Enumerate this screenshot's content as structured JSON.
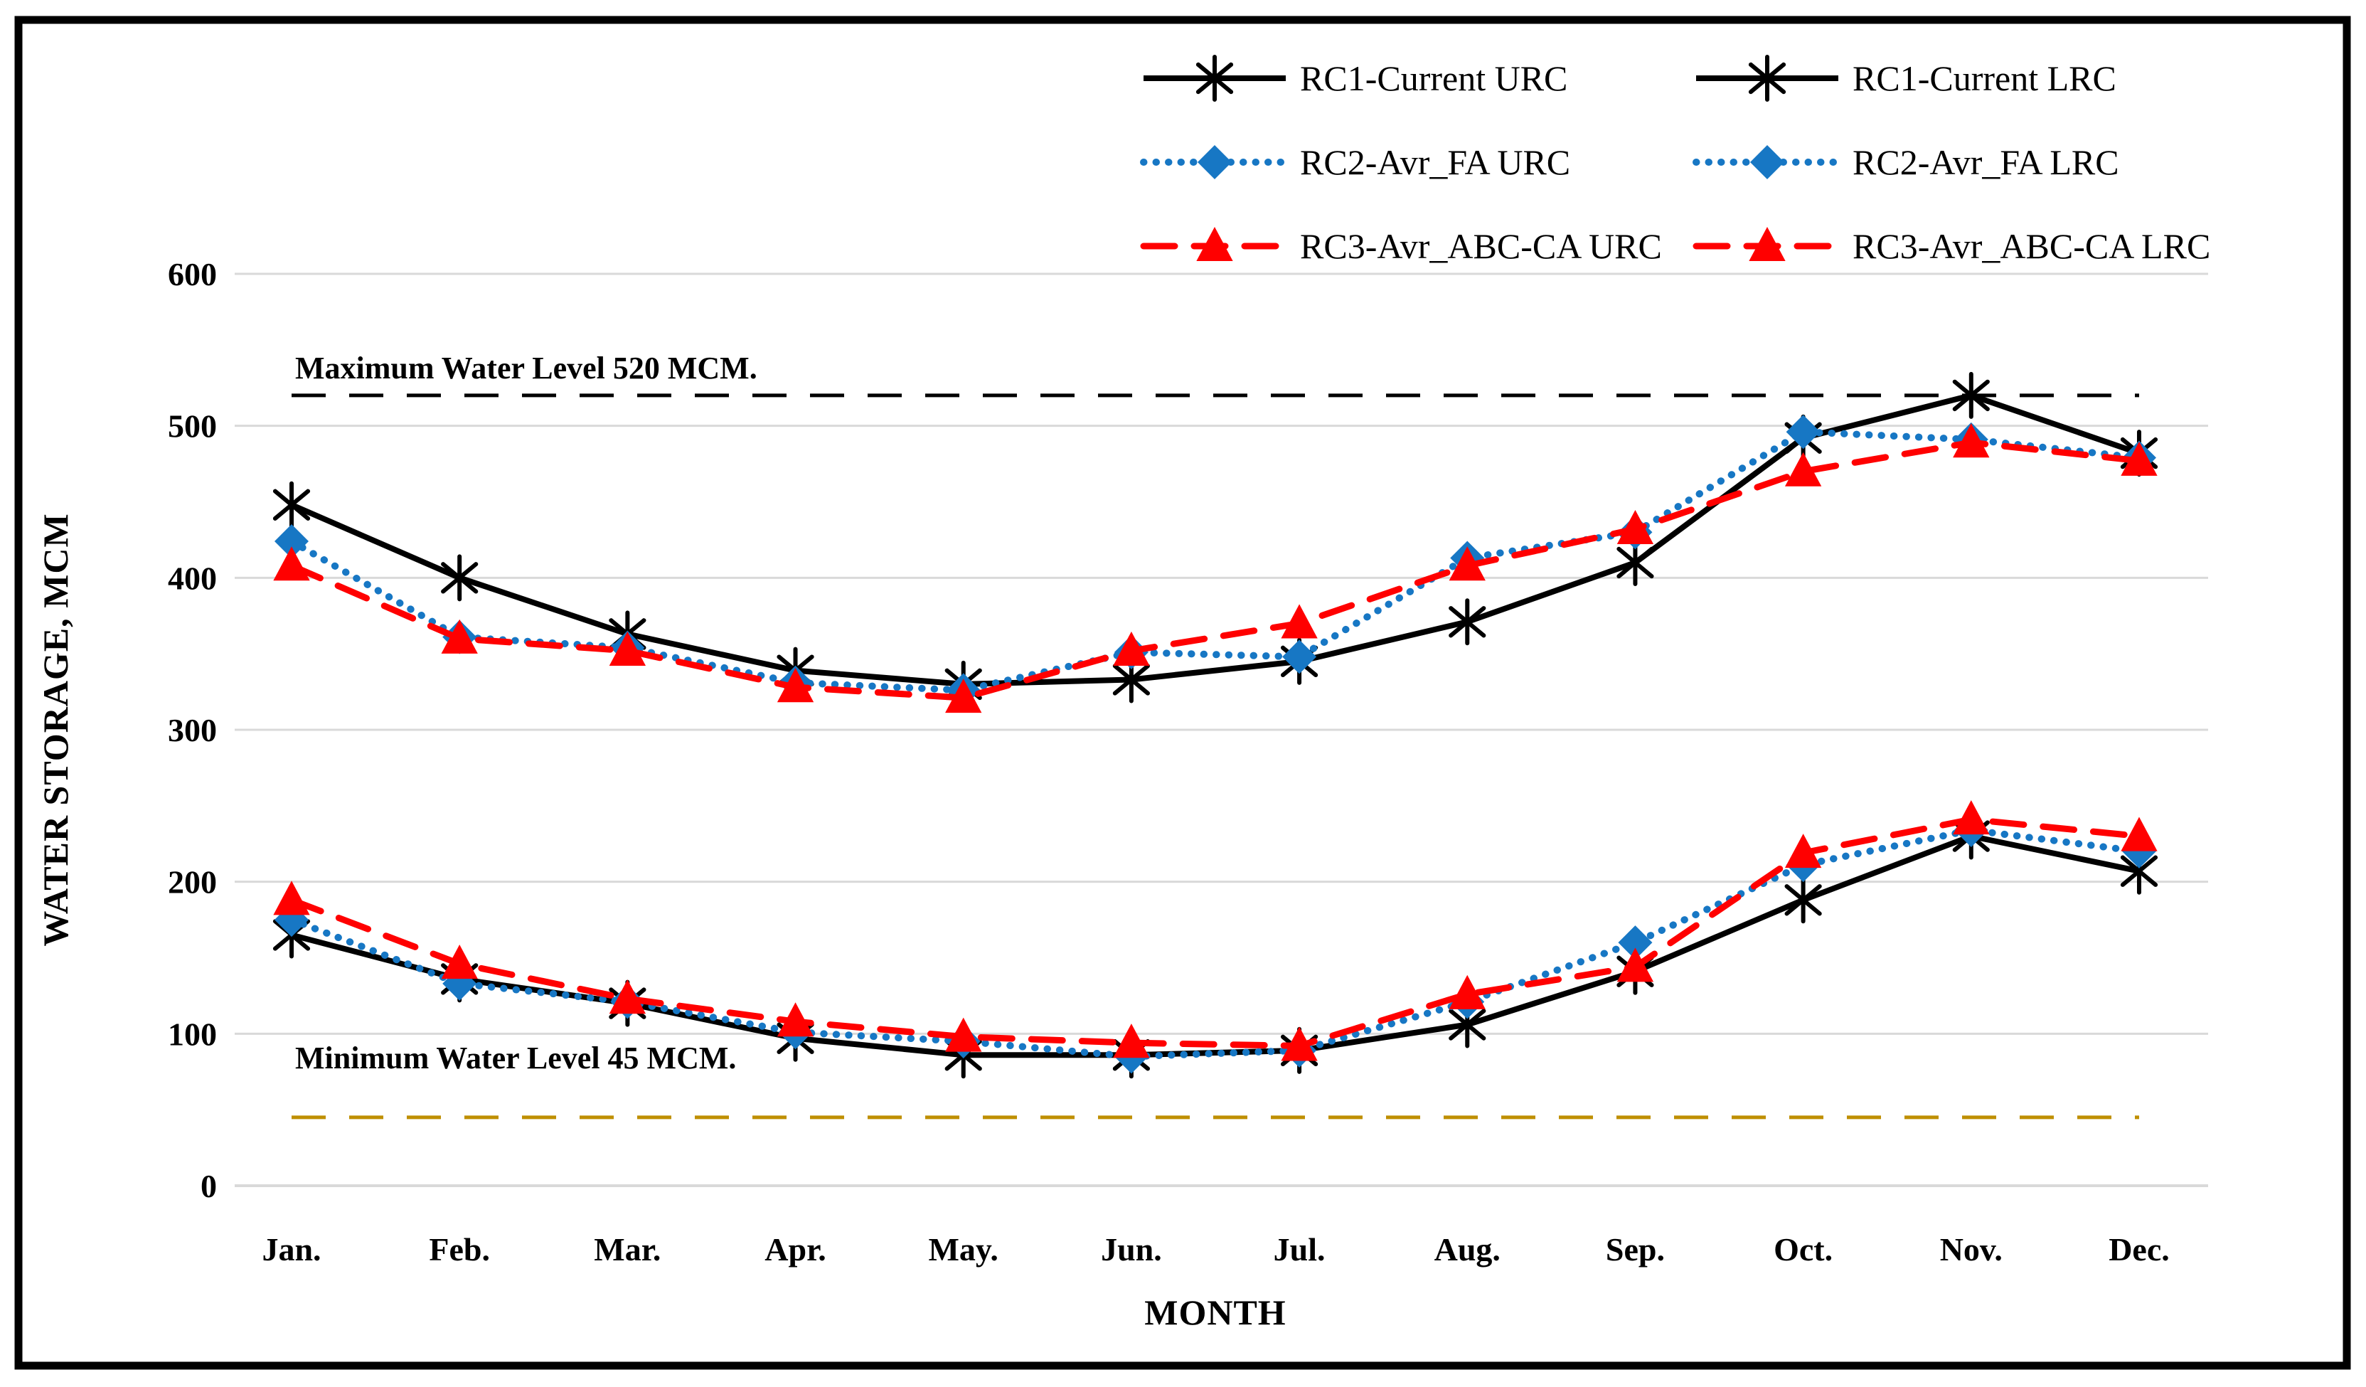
{
  "chart_data": {
    "type": "line",
    "title": "",
    "xlabel": "MONTH",
    "ylabel": "WATER STORAGE, MCM",
    "categories": [
      "Jan.",
      "Feb.",
      "Mar.",
      "Apr.",
      "May.",
      "Jun.",
      "Jul.",
      "Aug.",
      "Sep.",
      "Oct.",
      "Nov.",
      "Dec."
    ],
    "yticks": [
      0,
      100,
      200,
      300,
      400,
      500,
      600
    ],
    "ylim": [
      0,
      600
    ],
    "grid": "horizontal-light-gray",
    "legend_position": "top-right-2-columns",
    "series": [
      {
        "name": "RC1-Current URC",
        "color": "#000000",
        "line_style": "solid",
        "marker": "asterisk",
        "values": [
          448,
          400,
          363,
          339,
          330,
          333,
          345,
          371,
          410,
          492,
          520,
          482
        ]
      },
      {
        "name": "RC1-Current LRC",
        "color": "#000000",
        "line_style": "solid",
        "marker": "asterisk",
        "values": [
          165,
          136,
          120,
          97,
          86,
          86,
          89,
          106,
          141,
          188,
          230,
          207
        ]
      },
      {
        "name": "RC2-Avr_FA URC",
        "color": "#1777C4",
        "line_style": "dotted",
        "marker": "diamond",
        "values": [
          424,
          361,
          354,
          331,
          326,
          351,
          348,
          413,
          430,
          496,
          491,
          479
        ]
      },
      {
        "name": "RC2-Avr_FA LRC",
        "color": "#1777C4",
        "line_style": "dotted",
        "marker": "diamond",
        "values": [
          175,
          133,
          121,
          101,
          95,
          85,
          89,
          121,
          160,
          211,
          234,
          220
        ]
      },
      {
        "name": "RC3-Avr_ABC-CA URC",
        "color": "#FF0000",
        "line_style": "dashed",
        "marker": "triangle",
        "values": [
          408,
          360,
          352,
          328,
          321,
          352,
          370,
          408,
          432,
          470,
          489,
          477
        ]
      },
      {
        "name": "RC3-Avr_ABC-CA LRC",
        "color": "#FF0000",
        "line_style": "dashed",
        "marker": "triangle",
        "values": [
          188,
          146,
          123,
          108,
          98,
          94,
          92,
          126,
          144,
          219,
          241,
          230
        ]
      }
    ],
    "reference_lines": [
      {
        "label": "Maximum Water Level  520 MCM.",
        "value": 520,
        "color": "#000000"
      },
      {
        "label": "Minimum Water Level  45 MCM.",
        "value": 45,
        "color": "#BF8F00"
      }
    ],
    "colors": {
      "gridline": "#D9D9D9",
      "frame": "#000000",
      "rc1": "#000000",
      "rc2": "#1777C4",
      "rc3": "#FF0000",
      "min_line": "#BF8F00"
    }
  }
}
